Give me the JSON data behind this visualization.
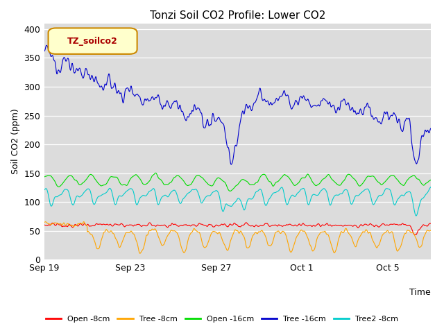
{
  "title": "Tonzi Soil CO2 Profile: Lower CO2",
  "ylabel": "Soil CO2 (ppm)",
  "xlabel": "Time",
  "ylim": [
    0,
    410
  ],
  "bg_color": "#dcdcdc",
  "fig_color": "#ffffff",
  "legend_label": "TZ_soilco2",
  "x_ticks_pos": [
    0,
    4,
    8,
    12,
    16
  ],
  "x_ticks_labels": [
    "Sep 19",
    "Sep 23",
    "Sep 27",
    "Oct 1",
    "Oct 5"
  ],
  "y_ticks": [
    0,
    50,
    100,
    150,
    200,
    250,
    300,
    350,
    400
  ],
  "xlim": [
    0,
    18
  ],
  "colors": {
    "open8": "#ff0000",
    "tree8": "#ffa500",
    "open16": "#00dd00",
    "tree16": "#0000cc",
    "tree2_8": "#00cccc"
  },
  "legend_entries": [
    "Open -8cm",
    "Tree -8cm",
    "Open -16cm",
    "Tree -16cm",
    "Tree2 -8cm"
  ]
}
